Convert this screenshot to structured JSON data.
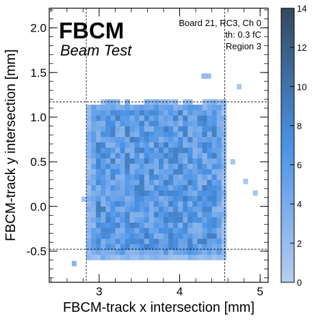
{
  "chart_data": {
    "type": "heatmap",
    "title": "",
    "xlabel": "FBCM-track x intersection [mm]",
    "ylabel": "FBCM-track y intersection [mm]",
    "xlim": [
      2.38,
      5.1
    ],
    "ylim": [
      -0.85,
      2.22
    ],
    "x_ticks": [
      3,
      4,
      5
    ],
    "x_tick_labels": [
      "3",
      "4",
      "5"
    ],
    "y_ticks": [
      -0.5,
      0.0,
      0.5,
      1.0,
      1.5,
      2.0
    ],
    "y_tick_labels": [
      "-0.5",
      "0.0",
      "0.5",
      "1.0",
      "1.5",
      "2.0"
    ],
    "bin_width": 0.06,
    "bin_height": 0.06,
    "x_bin_start": 2.84,
    "y_bin_start": -0.6,
    "cells_x": 29,
    "cells_y": 30,
    "seed": 21,
    "colorbar": {
      "min": 0,
      "max": 14,
      "ticks": [
        0,
        2,
        4,
        6,
        8,
        10,
        12,
        14
      ],
      "tick_labels": [
        "0",
        "2",
        "4",
        "6",
        "8",
        "10",
        "12",
        "14"
      ],
      "color_low": "#b7cdf0",
      "color_mid": "#4a92e6",
      "color_high": "#34495e"
    },
    "dashed_lines": {
      "vertical": [
        2.84,
        4.56
      ],
      "horizontal": [
        -0.48,
        1.17
      ]
    },
    "outliers": [
      {
        "x": 2.66,
        "y": -0.67,
        "v": 3
      },
      {
        "x": 4.27,
        "y": 1.43,
        "v": 2
      },
      {
        "x": 4.33,
        "y": 1.43,
        "v": 2
      },
      {
        "x": 4.63,
        "y": 0.47,
        "v": 1
      },
      {
        "x": 4.79,
        "y": 0.25,
        "v": 1
      },
      {
        "x": 4.91,
        "y": 0.12,
        "v": 1
      },
      {
        "x": 4.71,
        "y": 1.31,
        "v": 1
      },
      {
        "x": 2.78,
        "y": 0.05,
        "v": 1
      }
    ],
    "empty_cells": [
      {
        "x": 3.48,
        "y": 0.86
      },
      {
        "x": 3.54,
        "y": 1.04
      },
      {
        "x": 4.02,
        "y": -0.36
      },
      {
        "x": 3.06,
        "y": -0.48
      }
    ]
  },
  "labels": {
    "brand": "FBCM",
    "brand_sub": "Beam Test",
    "info_lines": [
      "Board 21, RC3, Ch 0",
      "th: 0.3 fC",
      "Region 3"
    ]
  }
}
